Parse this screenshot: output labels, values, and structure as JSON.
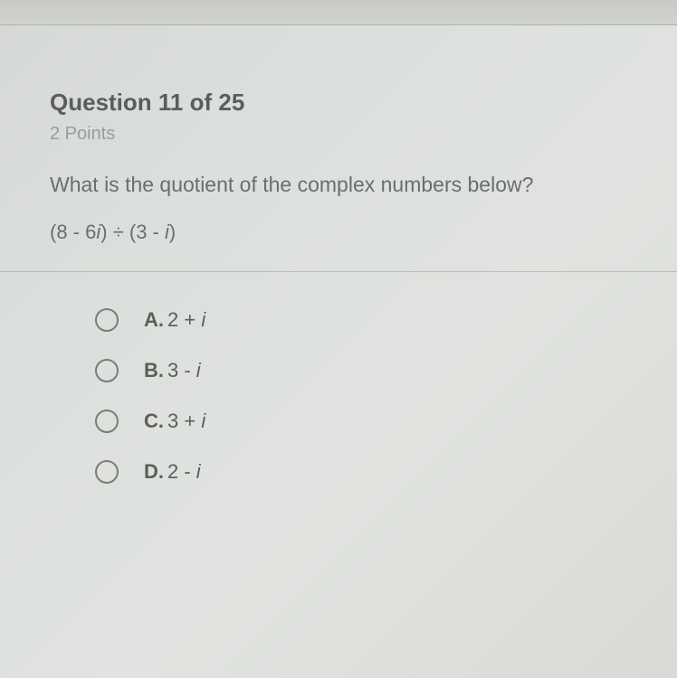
{
  "header": {
    "question_label": "Question 11 of 25",
    "points": "2 Points"
  },
  "question": {
    "text": "What is the quotient of the complex numbers below?",
    "expression_part1": "(8 - 6",
    "expression_i1": "i",
    "expression_part2": ") ÷ (3 - ",
    "expression_i2": "i",
    "expression_part3": ")"
  },
  "options": [
    {
      "letter": "A.",
      "value_pre": "2 + ",
      "value_i": "i",
      "value_post": ""
    },
    {
      "letter": "B.",
      "value_pre": "3 - ",
      "value_i": "i",
      "value_post": ""
    },
    {
      "letter": "C.",
      "value_pre": "3 + ",
      "value_i": "i",
      "value_post": ""
    },
    {
      "letter": "D.",
      "value_pre": "2 - ",
      "value_i": "i",
      "value_post": ""
    }
  ],
  "styling": {
    "background_color": "#dce0dd",
    "header_color": "#5a5d5a",
    "text_color": "#6b6e6a",
    "points_color": "#9a9c98",
    "radio_border": "#7a7c78",
    "option_color": "#5c5e5a",
    "header_fontsize": 26,
    "question_fontsize": 23,
    "option_fontsize": 22
  }
}
